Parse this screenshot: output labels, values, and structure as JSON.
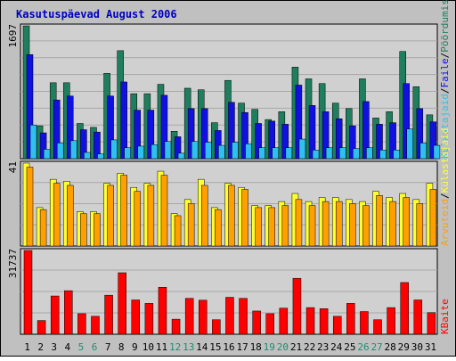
{
  "window": {
    "title": "Kasutuspäevad August 2006",
    "colors": {
      "background": "#C0C0C0",
      "plot_background": "#D0D0D0",
      "grid": "#A8A8A8",
      "title_text": "#0000C0",
      "weekend_tick": "#1E8C6E",
      "weekday_tick": "#000000"
    }
  },
  "chart_data": [
    {
      "type": "bar",
      "panel": "visits",
      "ymax_label": "1697",
      "ylim": [
        0,
        1697
      ],
      "categories": [
        "1",
        "2",
        "3",
        "4",
        "5",
        "6",
        "7",
        "8",
        "9",
        "10",
        "11",
        "12",
        "13",
        "14",
        "15",
        "16",
        "17",
        "18",
        "19",
        "20",
        "21",
        "22",
        "23",
        "24",
        "25",
        "26",
        "27",
        "28",
        "29",
        "30",
        "31"
      ],
      "weekend": [
        false,
        false,
        false,
        false,
        true,
        true,
        false,
        false,
        false,
        false,
        false,
        true,
        true,
        false,
        false,
        false,
        false,
        false,
        true,
        true,
        false,
        false,
        false,
        false,
        false,
        true,
        true,
        false,
        false,
        false,
        false
      ],
      "series": [
        {
          "name": "Pöördumisi",
          "color": "#1E7E5E",
          "values": [
            1697,
            420,
            970,
            970,
            450,
            400,
            1090,
            1380,
            830,
            830,
            950,
            350,
            900,
            880,
            460,
            1000,
            710,
            630,
            500,
            600,
            1170,
            1020,
            960,
            710,
            640,
            1020,
            520,
            600,
            1370,
            920,
            560
          ]
        },
        {
          "name": "Faile",
          "color": "#1010E0",
          "values": [
            1330,
            330,
            750,
            800,
            370,
            340,
            800,
            980,
            620,
            620,
            810,
            280,
            640,
            640,
            360,
            720,
            590,
            450,
            480,
            440,
            940,
            680,
            600,
            510,
            420,
            730,
            440,
            460,
            960,
            640,
            470
          ]
        },
        {
          "name": "Külastajaid",
          "color": "#30C0F0",
          "values": [
            430,
            120,
            200,
            230,
            80,
            60,
            240,
            140,
            160,
            180,
            220,
            70,
            220,
            210,
            170,
            210,
            190,
            140,
            140,
            140,
            250,
            110,
            140,
            140,
            130,
            140,
            110,
            110,
            380,
            200,
            170
          ]
        }
      ]
    },
    {
      "type": "bar",
      "panel": "hosts",
      "ymax_label": "41",
      "ylim": [
        0,
        41
      ],
      "categories": [
        "1",
        "2",
        "3",
        "4",
        "5",
        "6",
        "7",
        "8",
        "9",
        "10",
        "11",
        "12",
        "13",
        "14",
        "15",
        "16",
        "17",
        "18",
        "19",
        "20",
        "21",
        "22",
        "23",
        "24",
        "25",
        "26",
        "27",
        "28",
        "29",
        "30",
        "31"
      ],
      "series": [
        {
          "name": "Külastajaid",
          "color": "#FFFF30",
          "values": [
            41,
            19,
            33,
            32,
            17,
            17,
            31,
            36,
            29,
            31,
            37,
            16,
            23,
            33,
            19,
            31,
            29,
            20,
            20,
            22,
            26,
            22,
            24,
            24,
            23,
            22,
            27,
            24,
            26,
            23,
            31
          ]
        },
        {
          "name": "Arvuteid",
          "color": "#FFA000",
          "values": [
            39,
            18,
            31,
            30,
            16,
            16,
            30,
            35,
            27,
            30,
            35,
            15,
            21,
            30,
            18,
            30,
            28,
            19,
            19,
            20,
            23,
            20,
            22,
            22,
            21,
            20,
            25,
            22,
            24,
            21,
            28
          ]
        }
      ]
    },
    {
      "type": "bar",
      "panel": "kbytes",
      "ymax_label": "31737",
      "ylim": [
        0,
        31737
      ],
      "categories": [
        "1",
        "2",
        "3",
        "4",
        "5",
        "6",
        "7",
        "8",
        "9",
        "10",
        "11",
        "12",
        "13",
        "14",
        "15",
        "16",
        "17",
        "18",
        "19",
        "20",
        "21",
        "22",
        "23",
        "24",
        "25",
        "26",
        "27",
        "28",
        "29",
        "30",
        "31"
      ],
      "series": [
        {
          "name": "KBaite",
          "color": "#FF0000",
          "values": [
            31737,
            5200,
            14500,
            16500,
            7800,
            6800,
            14800,
            23300,
            13000,
            11700,
            17800,
            5700,
            13600,
            12900,
            5500,
            14000,
            13600,
            8800,
            7800,
            9900,
            21200,
            10100,
            9700,
            6800,
            11700,
            8600,
            5500,
            10100,
            19600,
            13000,
            8200
          ]
        }
      ]
    }
  ],
  "legend": {
    "visits_labels": [
      "Pöördumisi",
      "Faile",
      "Külastajaid"
    ],
    "hosts_labels": [
      "Külastajaid",
      "Arvuteid"
    ],
    "kbytes_labels": [
      "KBaite"
    ],
    "separator": "/"
  }
}
